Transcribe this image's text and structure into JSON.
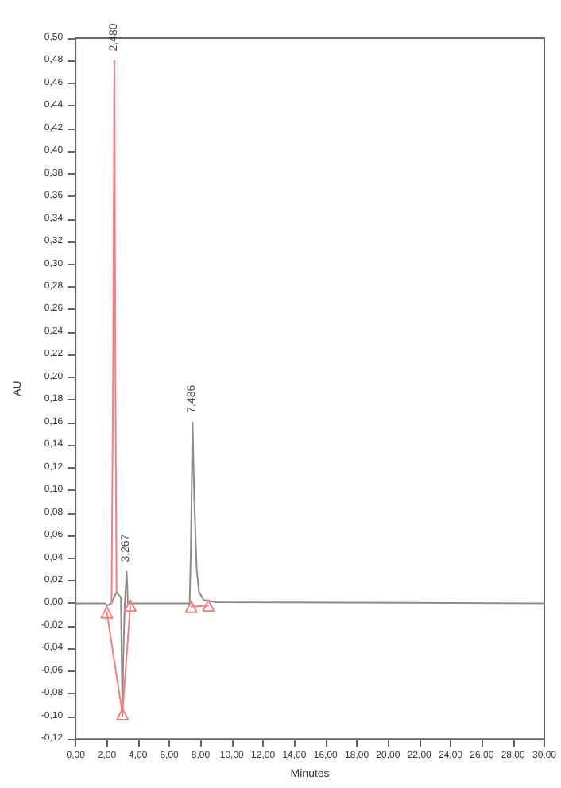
{
  "chart_data": {
    "type": "line",
    "xlabel": "Minutes",
    "ylabel": "AU",
    "xlim": [
      0,
      30
    ],
    "ylim": [
      -0.12,
      0.5
    ],
    "xticks": [
      {
        "value": 0,
        "label": "0,00"
      },
      {
        "value": 2,
        "label": "2,00"
      },
      {
        "value": 4,
        "label": "4,00"
      },
      {
        "value": 6,
        "label": "6,00"
      },
      {
        "value": 8,
        "label": "8,00"
      },
      {
        "value": 10,
        "label": "10,00"
      },
      {
        "value": 12,
        "label": "12,00"
      },
      {
        "value": 14,
        "label": "14,00"
      },
      {
        "value": 16,
        "label": "16,00"
      },
      {
        "value": 18,
        "label": "18,00"
      },
      {
        "value": 20,
        "label": "20,00"
      },
      {
        "value": 22,
        "label": "22,00"
      },
      {
        "value": 24,
        "label": "24,00"
      },
      {
        "value": 26,
        "label": "26,00"
      },
      {
        "value": 28,
        "label": "28,00"
      },
      {
        "value": 30,
        "label": "30,00"
      }
    ],
    "yticks": [
      {
        "value": -0.12,
        "label": "-0,12"
      },
      {
        "value": -0.1,
        "label": "-0,10"
      },
      {
        "value": -0.08,
        "label": "-0,08"
      },
      {
        "value": -0.06,
        "label": "-0,06"
      },
      {
        "value": -0.04,
        "label": "-0,04"
      },
      {
        "value": -0.02,
        "label": "-0,02"
      },
      {
        "value": 0,
        "label": "0,00"
      },
      {
        "value": 0.02,
        "label": "0,02"
      },
      {
        "value": 0.04,
        "label": "0,04"
      },
      {
        "value": 0.06,
        "label": "0,06"
      },
      {
        "value": 0.08,
        "label": "0,08"
      },
      {
        "value": 0.1,
        "label": "0,10"
      },
      {
        "value": 0.12,
        "label": "0,12"
      },
      {
        "value": 0.14,
        "label": "0,14"
      },
      {
        "value": 0.16,
        "label": "0,16"
      },
      {
        "value": 0.18,
        "label": "0,18"
      },
      {
        "value": 0.2,
        "label": "0,20"
      },
      {
        "value": 0.22,
        "label": "0,22"
      },
      {
        "value": 0.24,
        "label": "0,24"
      },
      {
        "value": 0.26,
        "label": "0,26"
      },
      {
        "value": 0.28,
        "label": "0,28"
      },
      {
        "value": 0.3,
        "label": "0,30"
      },
      {
        "value": 0.32,
        "label": "0,32"
      },
      {
        "value": 0.34,
        "label": "0,34"
      },
      {
        "value": 0.36,
        "label": "0,36"
      },
      {
        "value": 0.38,
        "label": "0,38"
      },
      {
        "value": 0.4,
        "label": "0,40"
      },
      {
        "value": 0.42,
        "label": "0,42"
      },
      {
        "value": 0.44,
        "label": "0,44"
      },
      {
        "value": 0.46,
        "label": "0,46"
      },
      {
        "value": 0.48,
        "label": "0,48"
      },
      {
        "value": 0.5,
        "label": "0,50"
      }
    ],
    "grid": false,
    "line_style": "solid",
    "series": [
      {
        "color": "#8c8c8c",
        "marker": "none",
        "x": [
          0,
          1.9,
          2.0,
          2.3,
          2.62,
          2.9,
          2.95,
          3.0,
          3.05,
          3.15,
          3.267,
          3.35,
          3.5,
          7.3,
          7.38,
          7.486,
          7.6,
          7.75,
          7.9,
          8.2,
          9,
          30
        ],
        "values": [
          0,
          0,
          -0.002,
          0,
          0.01,
          0.005,
          -0.05,
          -0.1,
          -0.05,
          0,
          0.028,
          0,
          0,
          0,
          0.05,
          0.16,
          0.09,
          0.03,
          0.01,
          0.003,
          0.001,
          0
        ]
      },
      {
        "color": "#f08080",
        "marker": "none",
        "x": [
          2.3,
          2.4,
          2.48,
          2.55,
          2.62
        ],
        "values": [
          0,
          0.2,
          0.48,
          0.2,
          0.01
        ]
      },
      {
        "color": "#f08080",
        "marker": "triangle",
        "x": [
          2.0,
          3.0,
          3.5
        ],
        "values": [
          -0.008,
          -0.098,
          -0.002
        ]
      },
      {
        "color": "#f08080",
        "marker": "triangle",
        "x": [
          7.4,
          8.5
        ],
        "values": [
          -0.003,
          -0.002
        ]
      }
    ],
    "annotations": [
      {
        "text": "2,480",
        "x": 2.48,
        "y": 0.48
      },
      {
        "text": "3,267",
        "x": 3.267,
        "y": 0.028
      },
      {
        "text": "7,486",
        "x": 7.486,
        "y": 0.16
      }
    ]
  }
}
